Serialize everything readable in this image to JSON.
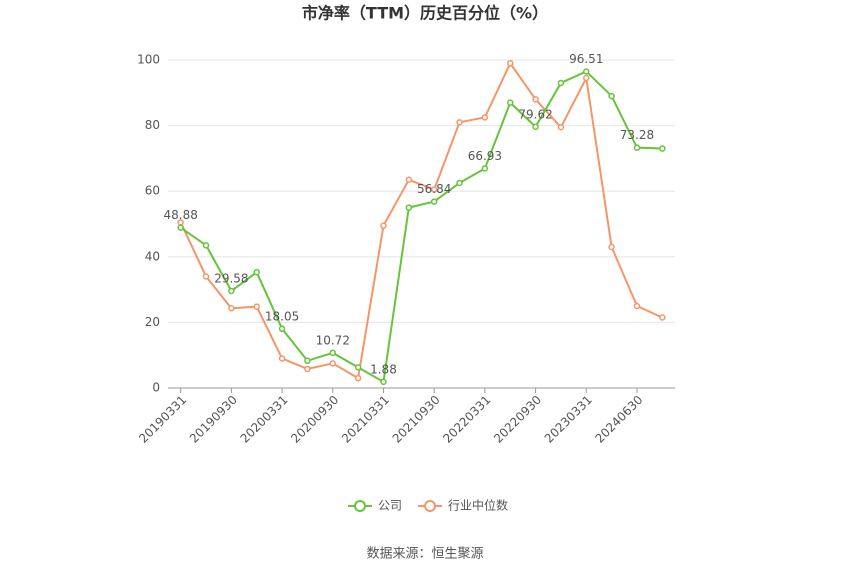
{
  "chart_data": {
    "type": "line",
    "title": "市净率（TTM）历史百分位（%）",
    "source": "数据来源：恒生聚源",
    "categories": [
      "20190331",
      null,
      "20190930",
      null,
      "20200331",
      null,
      "20200930",
      null,
      "20210331",
      null,
      "20210930",
      null,
      "20220331",
      null,
      "20220930",
      null,
      "20230331",
      null,
      "20240630",
      null
    ],
    "series": [
      {
        "name": "公司",
        "color": "#66c43a",
        "values": [
          48.88,
          43.5,
          29.58,
          35.3,
          18.05,
          8.3,
          10.72,
          6.3,
          1.88,
          55,
          56.84,
          62.5,
          66.93,
          87,
          79.62,
          93,
          96.51,
          89,
          73.28,
          73
        ]
      },
      {
        "name": "行业中位数",
        "color": "#f5966a",
        "values": [
          50.5,
          34,
          24.3,
          24.8,
          9,
          5.8,
          7.5,
          3,
          49.5,
          63.5,
          60.5,
          81,
          82.5,
          99,
          88,
          79.5,
          94.5,
          43,
          25,
          21.5
        ]
      }
    ],
    "ylim": [
      0,
      100
    ],
    "yticks": [
      0,
      20,
      40,
      60,
      80,
      100
    ],
    "grid": true
  }
}
